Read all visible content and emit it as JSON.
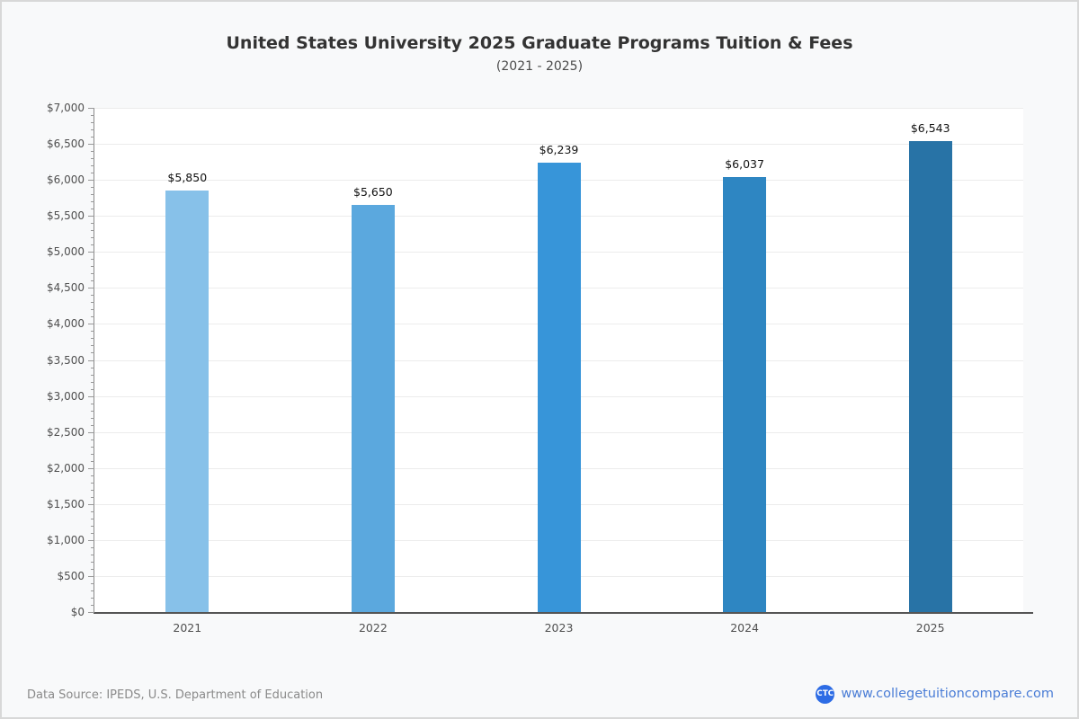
{
  "header": {
    "title": "United States University 2025 Graduate Programs Tuition & Fees",
    "subtitle": "(2021 - 2025)"
  },
  "footer": {
    "data_source": "Data Source: IPEDS, U.S. Department of Education",
    "logo_text": "CTC",
    "site_label": "www.collegetuitioncompare.com",
    "link_color": "#4a7dd6",
    "logo_color": "#2d6ce5"
  },
  "chart_data": {
    "type": "bar",
    "title": "United States University 2025 Graduate Programs Tuition & Fees",
    "subtitle": "(2021 - 2025)",
    "categories": [
      "2021",
      "2022",
      "2023",
      "2024",
      "2025"
    ],
    "values": [
      5850,
      5650,
      6239,
      6037,
      6543
    ],
    "value_labels": [
      "$5,850",
      "$5,650",
      "$6,239",
      "$6,037",
      "$6,543"
    ],
    "bar_colors": [
      "#87c1e9",
      "#5ba8de",
      "#3795d9",
      "#2e86c2",
      "#2873a6"
    ],
    "xlabel": "",
    "ylabel": "",
    "ylim": [
      0,
      7000
    ],
    "ytick_step": 500,
    "minor_tick_step": 100,
    "ytick_prefix": "$",
    "grid": true,
    "legend_position": "none"
  }
}
